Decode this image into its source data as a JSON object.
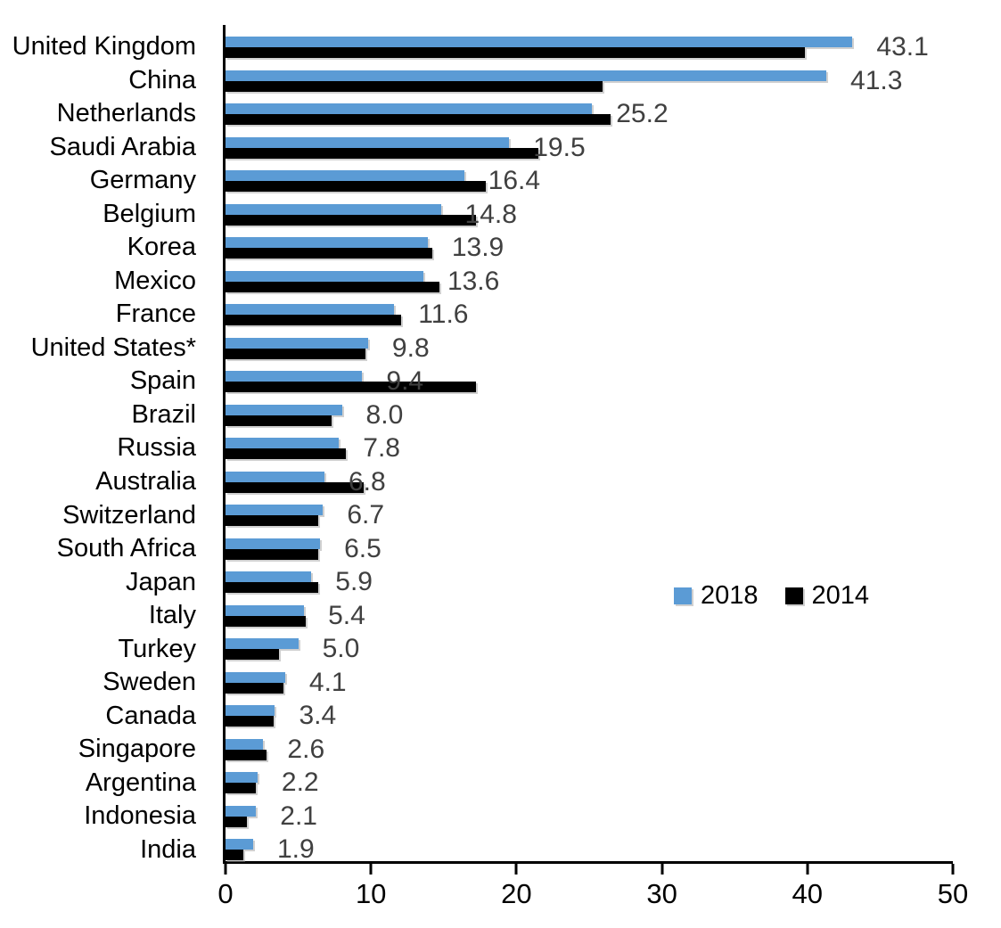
{
  "chart_data": {
    "type": "bar",
    "orientation": "horizontal",
    "title": "",
    "xlabel": "",
    "ylabel": "",
    "xlim": [
      0,
      50
    ],
    "xticks": [
      "0",
      "10",
      "20",
      "30",
      "40",
      "50"
    ],
    "grid": false,
    "legend": {
      "position": "middle-right",
      "entries": [
        "2018",
        "2014"
      ]
    },
    "value_labels_for_series": "2018",
    "categories": [
      "United Kingdom",
      "China",
      "Netherlands",
      "Saudi Arabia",
      "Germany",
      "Belgium",
      "Korea",
      "Mexico",
      "France",
      "United States*",
      "Spain",
      "Brazil",
      "Russia",
      "Australia",
      "Switzerland",
      "South Africa",
      "Japan",
      "Italy",
      "Turkey",
      "Sweden",
      "Canada",
      "Singapore",
      "Argentina",
      "Indonesia",
      "India"
    ],
    "series": [
      {
        "name": "2018",
        "color": "#5B9BD5",
        "values": [
          43.1,
          41.3,
          25.2,
          19.5,
          16.4,
          14.8,
          13.9,
          13.6,
          11.6,
          9.8,
          9.4,
          8.0,
          7.8,
          6.8,
          6.7,
          6.5,
          5.9,
          5.4,
          5.0,
          4.1,
          3.4,
          2.6,
          2.2,
          2.1,
          1.9
        ]
      },
      {
        "name": "2014",
        "color": "#000000",
        "values": [
          39.8,
          25.9,
          26.5,
          21.5,
          17.9,
          17.2,
          14.2,
          14.7,
          12.1,
          9.6,
          17.2,
          7.3,
          8.3,
          9.5,
          6.4,
          6.4,
          6.4,
          5.5,
          3.7,
          4.0,
          3.3,
          2.8,
          2.1,
          1.5,
          1.2
        ]
      }
    ],
    "value_label_color": "#404040",
    "axis_color": "#000000"
  }
}
